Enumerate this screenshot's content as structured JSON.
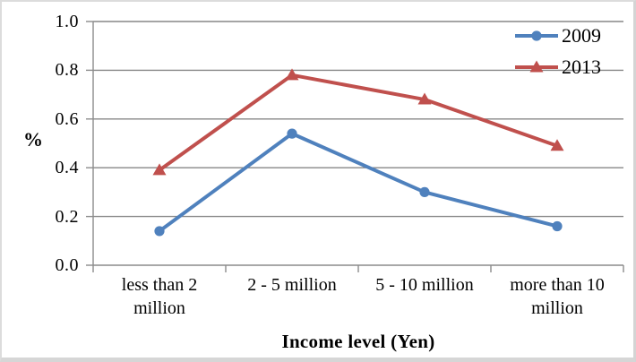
{
  "chart_data": {
    "type": "line",
    "title": "",
    "categories": [
      "less than 2 million",
      "2 - 5 million",
      "5 - 10 million",
      "more than 10 million"
    ],
    "category_label_lines": [
      [
        "less than 2",
        "million"
      ],
      [
        "2 - 5 million"
      ],
      [
        "5 - 10 million"
      ],
      [
        "more than 10",
        "million"
      ]
    ],
    "series": [
      {
        "name": "2009",
        "values": [
          0.14,
          0.54,
          0.3,
          0.16
        ],
        "color": "#4F81BD",
        "marker": "circle"
      },
      {
        "name": "2013",
        "values": [
          0.39,
          0.78,
          0.68,
          0.49
        ],
        "color": "#C0504D",
        "marker": "triangle"
      }
    ],
    "xlabel": "Income level (Yen)",
    "ylabel": "%",
    "ylim": [
      0,
      1.0
    ],
    "yticks": [
      "0.0",
      "0.2",
      "0.4",
      "0.6",
      "0.8",
      "1.0"
    ],
    "grid": true,
    "legend_position": "top-right"
  },
  "colors": {
    "grid": "#878787",
    "axis": "#8c8c8c",
    "text": "#000000",
    "background": "#ffffff"
  }
}
